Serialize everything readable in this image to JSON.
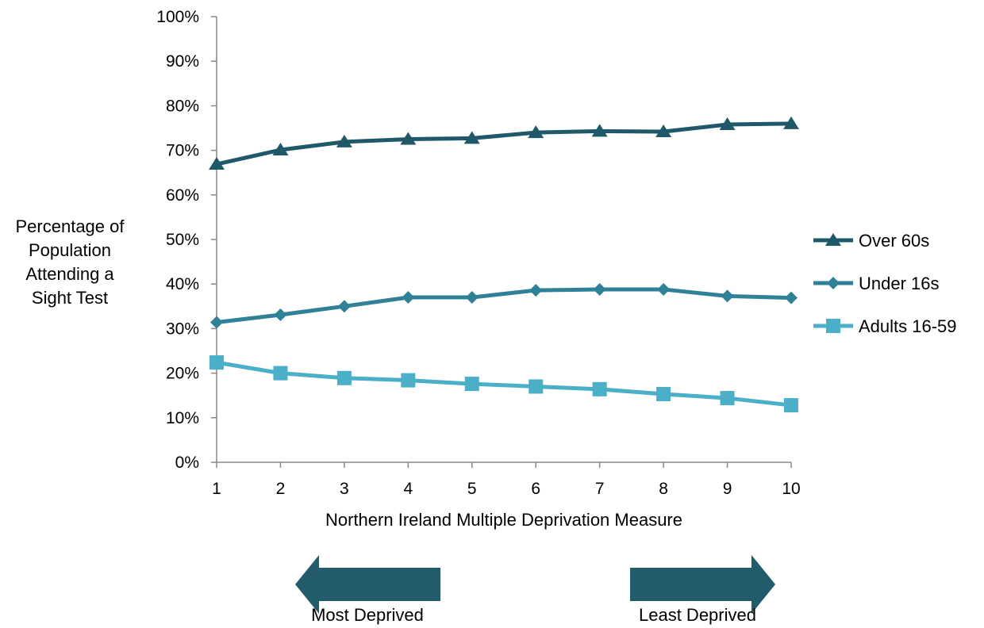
{
  "chart_data": {
    "type": "line",
    "xlabel": "Northern Ireland Multiple Deprivation Measure",
    "ylabel_lines": [
      "Percentage of",
      "Population",
      "Attending a",
      "Sight Test"
    ],
    "x": [
      1,
      2,
      3,
      4,
      5,
      6,
      7,
      8,
      9,
      10
    ],
    "x_tick_labels": [
      "1",
      "2",
      "3",
      "4",
      "5",
      "6",
      "7",
      "8",
      "9",
      "10"
    ],
    "ylim": [
      0,
      100
    ],
    "y_tick_labels": [
      "0%",
      "10%",
      "20%",
      "30%",
      "40%",
      "50%",
      "60%",
      "70%",
      "80%",
      "90%",
      "100%"
    ],
    "grid": false,
    "legend_position": "right",
    "series": [
      {
        "name": "Over 60s",
        "marker": "triangle",
        "color": "#1f5868",
        "values": [
          66.9,
          70.1,
          71.9,
          72.5,
          72.7,
          74.0,
          74.3,
          74.2,
          75.8,
          76.0
        ]
      },
      {
        "name": "Under 16s",
        "marker": "diamond",
        "color": "#2f8197",
        "values": [
          31.4,
          33.1,
          35.0,
          37.0,
          37.0,
          38.6,
          38.8,
          38.8,
          37.3,
          36.9
        ]
      },
      {
        "name": "Adults 16-59",
        "marker": "square",
        "color": "#4aafc7",
        "values": [
          22.4,
          20.0,
          18.9,
          18.4,
          17.6,
          17.0,
          16.4,
          15.3,
          14.4,
          12.8
        ]
      }
    ],
    "annotations": {
      "left_arrow_label": "Most Deprived",
      "right_arrow_label": "Least Deprived",
      "arrow_color": "#225b69"
    }
  }
}
